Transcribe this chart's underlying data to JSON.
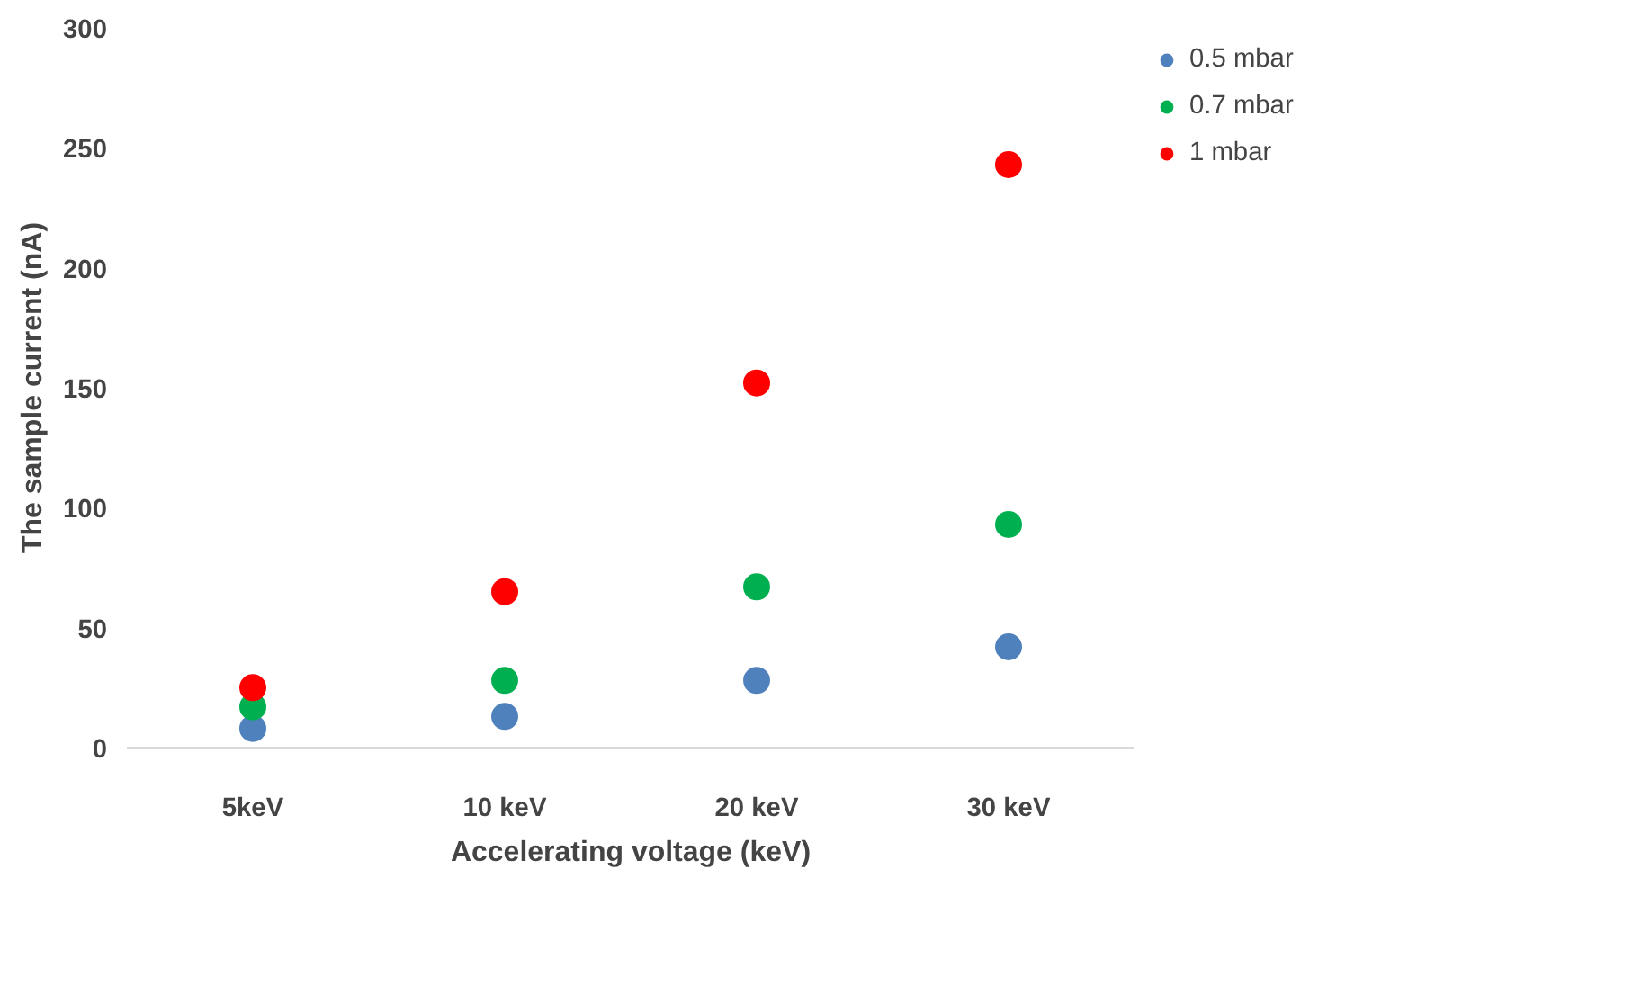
{
  "chart_data": {
    "type": "scatter",
    "xlabel": "Accelerating voltage (keV)",
    "ylabel": "The sample current (nA)",
    "categories": [
      "5keV",
      "10 keV",
      "20 keV",
      "30 keV"
    ],
    "series": [
      {
        "name": "0.5 mbar",
        "color": "#4f81bd",
        "values": [
          8,
          13,
          28,
          42
        ]
      },
      {
        "name": "0.7 mbar",
        "color": "#00b050",
        "values": [
          17,
          28,
          67,
          93
        ]
      },
      {
        "name": "1 mbar",
        "color": "#ff0000",
        "values": [
          25,
          65,
          152,
          243
        ]
      }
    ],
    "ylim": [
      0,
      300
    ],
    "yticks": [
      0,
      50,
      100,
      150,
      200,
      250,
      300
    ],
    "grid": false,
    "legend": "top right",
    "marker": "circle"
  }
}
